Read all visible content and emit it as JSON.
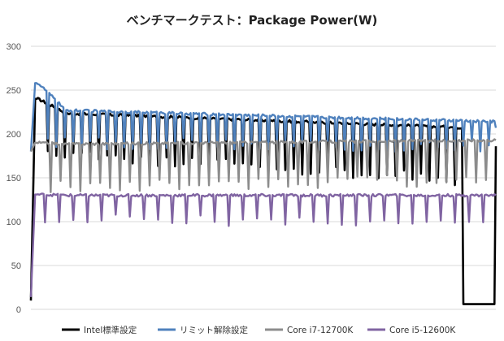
{
  "chart_data": {
    "type": "line",
    "title": "ベンチマークテスト：Package Power(W)",
    "xlabel": "",
    "ylabel": "",
    "ylim": [
      0,
      300
    ],
    "yticks": [
      0,
      50,
      100,
      150,
      200,
      250,
      300
    ],
    "grid": true,
    "legend_position": "bottom",
    "x_count": 330,
    "series": [
      {
        "name": "Intel標準設定",
        "color": "#000000",
        "start": 10,
        "peak": 240,
        "plateau_start": 225,
        "plateau_end": 206,
        "dip_every": 6,
        "dip_value": 180,
        "late_dip_value": 145,
        "drop_at": 0.93,
        "drop_value": 6
      },
      {
        "name": "リミット解除設定",
        "color": "#4f81bd",
        "start": 180,
        "peak": 258,
        "plateau_start": 228,
        "plateau_end": 214,
        "dip_every": 6,
        "dip_value": 190,
        "late_dip_value": 185,
        "end_value": 207
      },
      {
        "name": "Core i7-12700K",
        "color": "#8c8c8c",
        "start": 180,
        "peak": 190,
        "plateau_start": 188,
        "plateau_end": 193,
        "dip_every": 7,
        "dip_value": 140,
        "late_dip_value": 148,
        "end_value": 193
      },
      {
        "name": "Core i5-12600K",
        "color": "#8064a2",
        "start": 14,
        "peak": 131,
        "plateau_start": 130,
        "plateau_end": 130,
        "dip_every": 10,
        "dip_value": 102,
        "late_dip_value": 102,
        "end_value": 130
      }
    ]
  }
}
